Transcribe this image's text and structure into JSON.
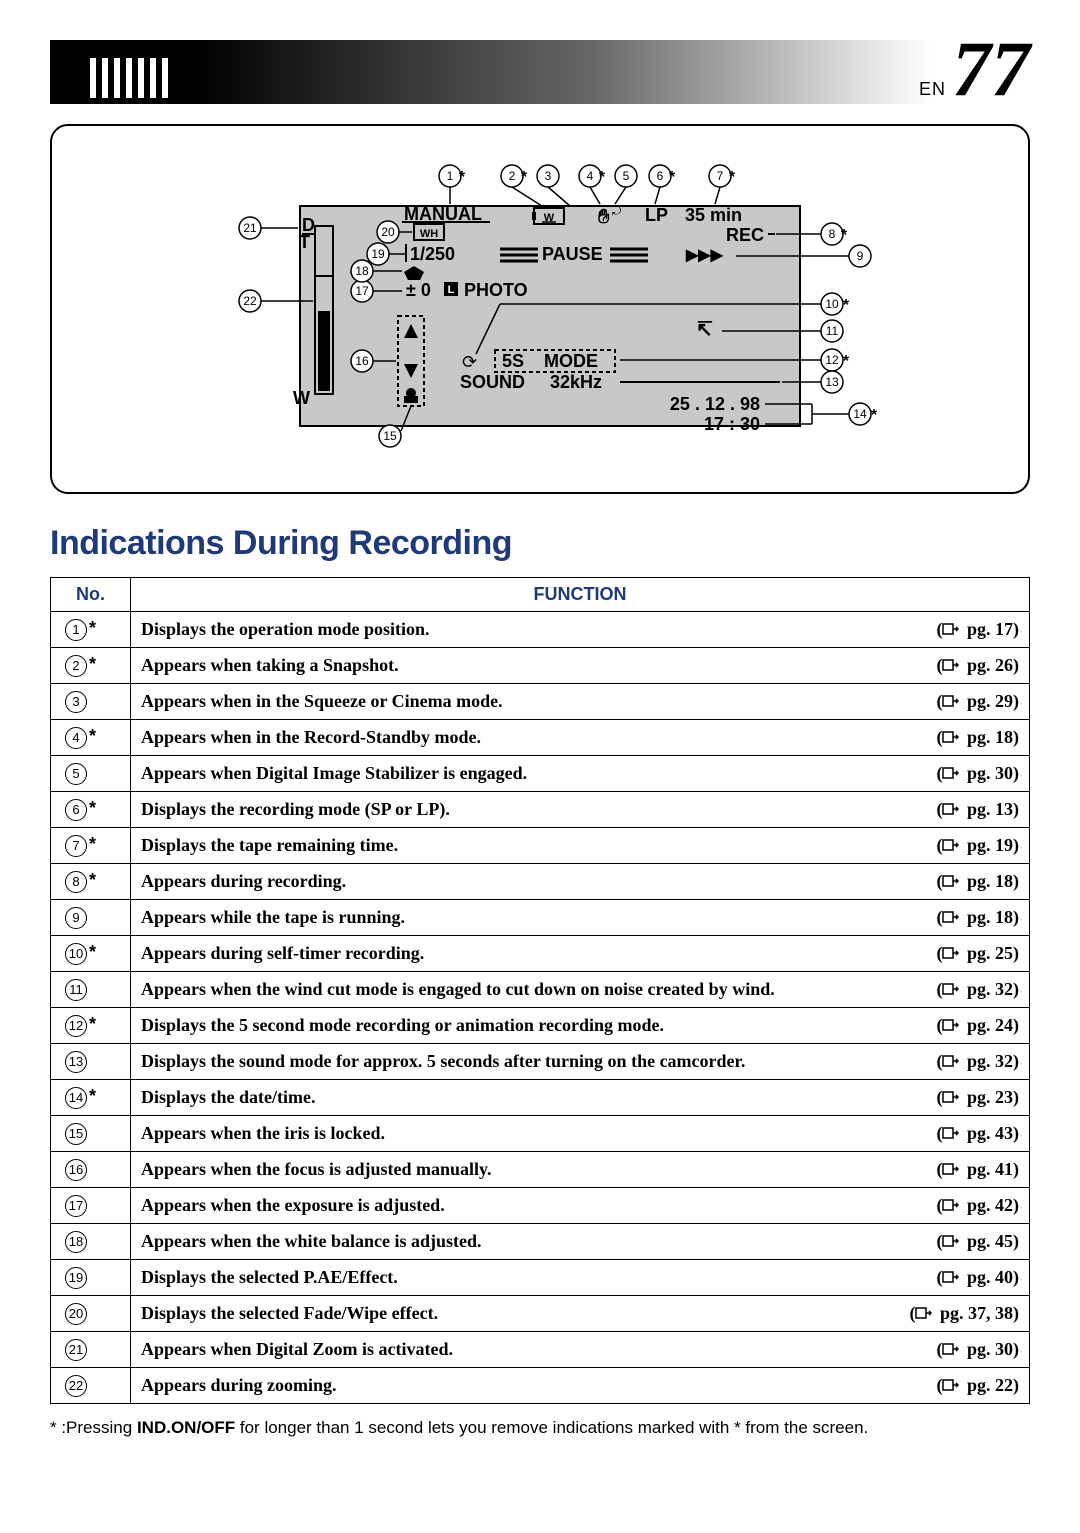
{
  "header": {
    "lang": "EN",
    "page_number": "77"
  },
  "diagram": {
    "title": "MANUAL",
    "wh": "WH",
    "shutter": "1/250",
    "pause": "PAUSE",
    "exposure": "± 0",
    "photo": "PHOTO",
    "lp": "LP",
    "time_remain": "35 min",
    "rec": "REC",
    "five_s": "5S",
    "mode": "MODE",
    "sound": "SOUND",
    "khz": "32kHz",
    "timer_icon": "⟳",
    "wind_icon": "↸",
    "date": "25 . 12 . 98",
    "time": "17 : 30",
    "d_label": "D",
    "t_label": "T",
    "w_label": "W",
    "l_label": "L",
    "callouts": {
      "1": "1",
      "2": "2",
      "3": "3",
      "4": "4",
      "5": "5",
      "6": "6",
      "7": "7",
      "8": "8",
      "9": "9",
      "10": "10",
      "11": "11",
      "12": "12",
      "13": "13",
      "14": "14",
      "15": "15",
      "16": "16",
      "17": "17",
      "18": "18",
      "19": "19",
      "20": "20",
      "21": "21",
      "22": "22"
    }
  },
  "section_heading": "Indications During Recording",
  "table": {
    "headers": {
      "no": "No.",
      "fn": "FUNCTION"
    },
    "rows": [
      {
        "n": "1",
        "star": true,
        "text": "Displays the operation mode position.",
        "ref": "pg. 17"
      },
      {
        "n": "2",
        "star": true,
        "text": "Appears when taking a Snapshot.",
        "ref": "pg. 26"
      },
      {
        "n": "3",
        "star": false,
        "text": "Appears when in the Squeeze or Cinema mode.",
        "ref": "pg. 29"
      },
      {
        "n": "4",
        "star": true,
        "text": "Appears when in the Record-Standby mode.",
        "ref": "pg. 18"
      },
      {
        "n": "5",
        "star": false,
        "text": "Appears when Digital Image Stabilizer is engaged.",
        "ref": "pg. 30"
      },
      {
        "n": "6",
        "star": true,
        "text": "Displays the recording mode (SP or LP).",
        "ref": "pg. 13"
      },
      {
        "n": "7",
        "star": true,
        "text": "Displays the tape remaining time.",
        "ref": "pg. 19"
      },
      {
        "n": "8",
        "star": true,
        "text": "Appears during recording.",
        "ref": "pg. 18"
      },
      {
        "n": "9",
        "star": false,
        "text": "Appears while the tape is running.",
        "ref": "pg. 18"
      },
      {
        "n": "10",
        "star": true,
        "text": "Appears during self-timer recording.",
        "ref": "pg. 25"
      },
      {
        "n": "11",
        "star": false,
        "text": "Appears when the wind cut mode is engaged to cut down on noise created by wind.",
        "ref": "pg. 32"
      },
      {
        "n": "12",
        "star": true,
        "text": "Displays the 5 second mode recording or animation recording mode.",
        "ref": "pg. 24"
      },
      {
        "n": "13",
        "star": false,
        "text": "Displays the sound mode for approx. 5 seconds after turning on the camcorder.",
        "ref": "pg. 32"
      },
      {
        "n": "14",
        "star": true,
        "text": "Displays the date/time.",
        "ref": "pg. 23"
      },
      {
        "n": "15",
        "star": false,
        "text": "Appears when the iris is locked.",
        "ref": "pg. 43"
      },
      {
        "n": "16",
        "star": false,
        "text": "Appears when the focus is adjusted manually.",
        "ref": "pg. 41"
      },
      {
        "n": "17",
        "star": false,
        "text": "Appears when the exposure is adjusted.",
        "ref": "pg. 42"
      },
      {
        "n": "18",
        "star": false,
        "text": "Appears when the white balance is adjusted.",
        "ref": "pg. 45"
      },
      {
        "n": "19",
        "star": false,
        "text": "Displays the selected P.AE/Effect.",
        "ref": "pg. 40"
      },
      {
        "n": "20",
        "star": false,
        "text": "Displays the selected Fade/Wipe effect.",
        "ref": "pg. 37, 38"
      },
      {
        "n": "21",
        "star": false,
        "text": "Appears when Digital Zoom is activated.",
        "ref": "pg. 30"
      },
      {
        "n": "22",
        "star": false,
        "text": "Appears during zooming.",
        "ref": "pg. 22"
      }
    ]
  },
  "footnote": {
    "prefix": "* :Pressing ",
    "strong": "IND.ON/OFF",
    "suffix": " for longer than 1 second  lets you remove indications marked with * from the screen."
  }
}
